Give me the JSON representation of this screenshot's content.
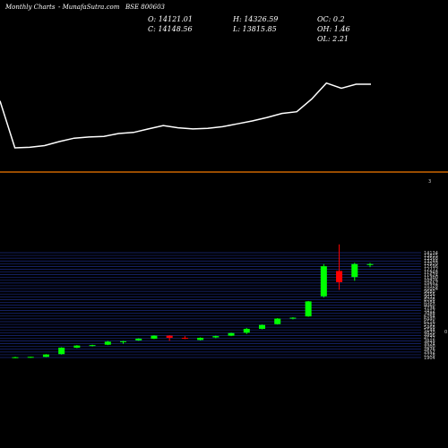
{
  "header": {
    "chart_type": "Monthly Charts",
    "source": "- MunafaSutra.com",
    "symbol": "BSE 800603",
    "open": "O: 14121.01",
    "close": "C: 14148.56",
    "high": "H: 14326.59",
    "low": "L: 13815.85",
    "oc": "OC: 0.2",
    "oh": "OH: 1.46",
    "ol": "OL: 2.21"
  },
  "colors": {
    "background": "#000000",
    "up": "#00ff00",
    "down": "#ff0000",
    "divider": "#cc6600",
    "line": "#ffffff",
    "grid": "#1a2a80"
  },
  "chart_data": [
    {
      "type": "line",
      "title": "",
      "series": [
        {
          "values": [
            12100,
            3900,
            4000,
            4300,
            5000,
            5600,
            5800,
            5900,
            6400,
            6600,
            7200,
            7800,
            7400,
            7200,
            7300,
            7600,
            8100,
            8600,
            9200,
            9900,
            10200,
            12400,
            15200,
            14300,
            15000,
            15000
          ]
        }
      ],
      "ylim": [
        0,
        20000
      ],
      "grid": false
    },
    {
      "type": "bar",
      "subtype": "candlestick",
      "title": "",
      "top_label": "3",
      "right_marker": "0",
      "candles": [
        {
          "o": 1880,
          "h": 2000,
          "l": 1820,
          "c": 1940
        },
        {
          "o": 1900,
          "h": 2000,
          "l": 1850,
          "c": 1980
        },
        {
          "o": 1980,
          "h": 2300,
          "l": 1950,
          "c": 2260
        },
        {
          "o": 2300,
          "h": 3100,
          "l": 2250,
          "c": 3050
        },
        {
          "o": 3050,
          "h": 3350,
          "l": 3000,
          "c": 3300
        },
        {
          "o": 3250,
          "h": 3400,
          "l": 3200,
          "c": 3350
        },
        {
          "o": 3400,
          "h": 3850,
          "l": 3350,
          "c": 3750
        },
        {
          "o": 3700,
          "h": 3850,
          "l": 3500,
          "c": 3800
        },
        {
          "o": 3900,
          "h": 4150,
          "l": 3850,
          "c": 4100
        },
        {
          "o": 4100,
          "h": 4500,
          "l": 4050,
          "c": 4450
        },
        {
          "o": 4450,
          "h": 4500,
          "l": 3850,
          "c": 4200
        },
        {
          "o": 4200,
          "h": 4400,
          "l": 4050,
          "c": 4150
        },
        {
          "o": 3950,
          "h": 4250,
          "l": 3900,
          "c": 4200
        },
        {
          "o": 4250,
          "h": 4450,
          "l": 4150,
          "c": 4400
        },
        {
          "o": 4450,
          "h": 4800,
          "l": 4400,
          "c": 4750
        },
        {
          "o": 4800,
          "h": 5350,
          "l": 4650,
          "c": 5250
        },
        {
          "o": 5250,
          "h": 5750,
          "l": 5200,
          "c": 5700
        },
        {
          "o": 5800,
          "h": 6500,
          "l": 5750,
          "c": 6450
        },
        {
          "o": 6450,
          "h": 6600,
          "l": 6350,
          "c": 6550
        },
        {
          "o": 6700,
          "h": 8500,
          "l": 6650,
          "c": 8450
        },
        {
          "o": 9050,
          "h": 12800,
          "l": 8900,
          "c": 12550
        },
        {
          "o": 12000,
          "h": 15100,
          "l": 9800,
          "c": 10700
        },
        {
          "o": 11300,
          "h": 12950,
          "l": 10850,
          "c": 12800
        },
        {
          "o": 12750,
          "h": 12950,
          "l": 12450,
          "c": 12800
        }
      ],
      "yticks": [
        "14134",
        "13815",
        "13568",
        "13244",
        "12920",
        "12596",
        "12272",
        "11948",
        "11624",
        "11300",
        "10976",
        "10652",
        "10328",
        "10004",
        "9680",
        "9356",
        "9032",
        "8708",
        "8384",
        "8060",
        "7736",
        "7412",
        "7088",
        "6764",
        "6440",
        "6116",
        "5792",
        "5468",
        "5144",
        "4820",
        "4496",
        "4172",
        "3848",
        "3524",
        "3200",
        "2876",
        "2552",
        "2228",
        "1904"
      ],
      "ylim": [
        1904,
        14134
      ],
      "grid": true
    }
  ]
}
